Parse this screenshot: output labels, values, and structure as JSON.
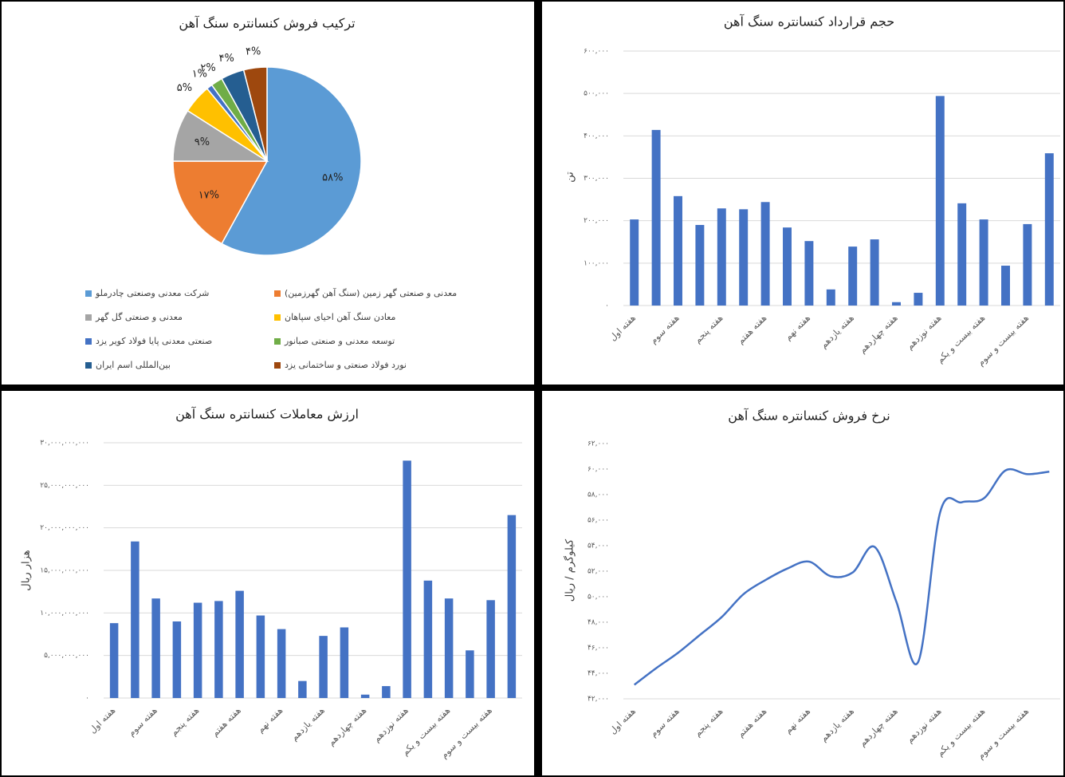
{
  "chart_data": [
    {
      "type": "pie",
      "title": "ترکیب فروش کنسانتره سنگ آهن",
      "categories": [
        "شرکت معدنی وصنعتی چادرملو",
        "معدنی و صنعتی گهر زمین (سنگ آهن گهرزمین)",
        "معدنی و صنعتی گل گهر",
        "معادن سنگ آهن احیای سپاهان",
        "صنعتی معدنی پایا فولاد کویر یزد",
        "توسعه معدنی و صنعتی صبانور",
        "بین‌المللی اسم ایران",
        "نورد فولاد صنعتی و ساختمانی یزد"
      ],
      "values": [
        58,
        17,
        9,
        5,
        1,
        2,
        4,
        4
      ],
      "value_labels": [
        "۵۸%",
        "۱۷%",
        "۹%",
        "۵%",
        "۱%",
        "۲%",
        "۴%",
        "۴%"
      ],
      "colors": [
        "#5b9bd5",
        "#ed7d31",
        "#a5a5a5",
        "#ffc000",
        "#4472c4",
        "#70ad47",
        "#255e91",
        "#9e480e"
      ],
      "legend": "bottom"
    },
    {
      "type": "bar",
      "title": "حجم قرارداد کنسانتره سنگ آهن",
      "y_label": "تن",
      "categories": [
        "هفته اول",
        null,
        "هفته سوم",
        null,
        "هفته پنجم",
        null,
        "هفته هفتم",
        null,
        "هفته نهم",
        null,
        "هفته یازدهم",
        null,
        "هفته چهاردهم",
        null,
        "هفته نوزدهم",
        null,
        "هفته بیست و یکم",
        null,
        "هفته بیست و سوم",
        null
      ],
      "values": [
        203000,
        414000,
        258000,
        190000,
        229000,
        227000,
        244000,
        184000,
        152000,
        38000,
        139000,
        156000,
        8000,
        30000,
        494000,
        241000,
        203000,
        94000,
        192000,
        359000
      ],
      "color": "#4472c4",
      "ylim": [
        0,
        600000
      ],
      "yticks": [
        {
          "value": 0,
          "label": "۰"
        },
        {
          "value": 100000,
          "label": "۱۰۰,۰۰۰"
        },
        {
          "value": 200000,
          "label": "۲۰۰,۰۰۰"
        },
        {
          "value": 300000,
          "label": "۳۰۰,۰۰۰"
        },
        {
          "value": 400000,
          "label": "۴۰۰,۰۰۰"
        },
        {
          "value": 500000,
          "label": "۵۰۰,۰۰۰"
        },
        {
          "value": 600000,
          "label": "۶۰۰,۰۰۰"
        }
      ],
      "grid": true
    },
    {
      "type": "bar",
      "title": "ارزش معاملات کنسانتره سنگ آهن",
      "y_label": "هزار ریال",
      "categories": [
        "هفته اول",
        null,
        "هفته سوم",
        null,
        "هفته پنجم",
        null,
        "هفته هفتم",
        null,
        "هفته نهم",
        null,
        "هفته یازدهم",
        null,
        "هفته چهاردهم",
        null,
        "هفته نوزدهم",
        null,
        "هفته بیست و یکم",
        null,
        "هفته بیست و سوم",
        null
      ],
      "values": [
        8800000000,
        18400000000,
        11700000000,
        9000000000,
        11200000000,
        11400000000,
        12600000000,
        9700000000,
        8100000000,
        2000000000,
        7300000000,
        8300000000,
        400000000,
        1400000000,
        27900000000,
        13800000000,
        11700000000,
        5600000000,
        11500000000,
        21500000000
      ],
      "color": "#4472c4",
      "ylim": [
        0,
        30000000000
      ],
      "yticks": [
        {
          "value": 0,
          "label": "۰"
        },
        {
          "value": 5000000000,
          "label": "۵,۰۰۰,۰۰۰,۰۰۰"
        },
        {
          "value": 10000000000,
          "label": "۱۰,۰۰۰,۰۰۰,۰۰۰"
        },
        {
          "value": 15000000000,
          "label": "۱۵,۰۰۰,۰۰۰,۰۰۰"
        },
        {
          "value": 20000000000,
          "label": "۲۰,۰۰۰,۰۰۰,۰۰۰"
        },
        {
          "value": 25000000000,
          "label": "۲۵,۰۰۰,۰۰۰,۰۰۰"
        },
        {
          "value": 30000000000,
          "label": "۳۰,۰۰۰,۰۰۰,۰۰۰"
        }
      ],
      "grid": true
    },
    {
      "type": "line",
      "title": "نرخ فروش کنسانتره سنگ آهن",
      "y_label": "کیلوگرم / ریال",
      "categories": [
        "هفته اول",
        null,
        "هفته سوم",
        null,
        "هفته پنجم",
        null,
        "هفته هفتم",
        null,
        "هفته نهم",
        null,
        "هفته یازدهم",
        null,
        "هفته چهاردهم",
        null,
        "هفته نوزدهم",
        null,
        "هفته بیست و یکم",
        null,
        "هفته بیست و سوم",
        null
      ],
      "values": [
        43100,
        44400,
        45600,
        47000,
        48400,
        50200,
        51300,
        52200,
        52750,
        51600,
        51900,
        53900,
        49600,
        44900,
        56600,
        57400,
        57700,
        59900,
        59600,
        59800
      ],
      "color": "#4472c4",
      "ylim": [
        42000,
        62000
      ],
      "yticks": [
        {
          "value": 42000,
          "label": "۴۲,۰۰۰"
        },
        {
          "value": 44000,
          "label": "۴۴,۰۰۰"
        },
        {
          "value": 46000,
          "label": "۴۶,۰۰۰"
        },
        {
          "value": 48000,
          "label": "۴۸,۰۰۰"
        },
        {
          "value": 50000,
          "label": "۵۰,۰۰۰"
        },
        {
          "value": 52000,
          "label": "۵۲,۰۰۰"
        },
        {
          "value": 54000,
          "label": "۵۴,۰۰۰"
        },
        {
          "value": 56000,
          "label": "۵۶,۰۰۰"
        },
        {
          "value": 58000,
          "label": "۵۸,۰۰۰"
        },
        {
          "value": 60000,
          "label": "۶۰,۰۰۰"
        },
        {
          "value": 62000,
          "label": "۶۲,۰۰۰"
        }
      ],
      "grid": false
    }
  ]
}
